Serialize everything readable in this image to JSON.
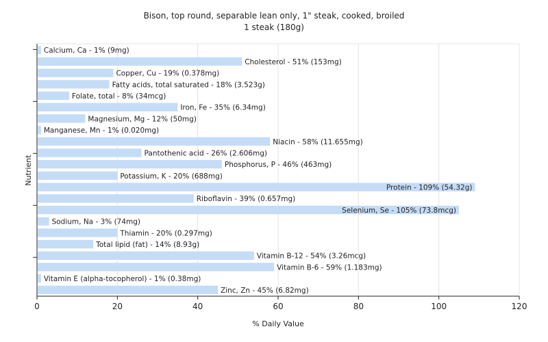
{
  "chart_data": {
    "type": "bar",
    "orientation": "horizontal",
    "title": "Bison, top round, separable lean only, 1\" steak, cooked, broiled",
    "subtitle": "1 steak (180g)",
    "xlabel": "% Daily Value",
    "ylabel": "Nutrient",
    "xlim": [
      0,
      120
    ],
    "xticks": [
      0,
      20,
      40,
      60,
      80,
      100,
      120
    ],
    "grid": true,
    "bar_color": "#c5dcf6",
    "categories": [
      "Calcium, Ca",
      "Cholesterol",
      "Copper, Cu",
      "Fatty acids, total saturated",
      "Folate, total",
      "Iron, Fe",
      "Magnesium, Mg",
      "Manganese, Mn",
      "Niacin",
      "Pantothenic acid",
      "Phosphorus, P",
      "Potassium, K",
      "Protein",
      "Riboflavin",
      "Selenium, Se",
      "Sodium, Na",
      "Thiamin",
      "Total lipid (fat)",
      "Vitamin B-12",
      "Vitamin B-6",
      "Vitamin E (alpha-tocopherol)",
      "Zinc, Zn"
    ],
    "values": [
      1,
      51,
      19,
      18,
      8,
      35,
      12,
      1,
      58,
      26,
      46,
      20,
      109,
      39,
      105,
      3,
      20,
      14,
      54,
      59,
      1,
      45
    ],
    "labels": [
      "Calcium, Ca - 1% (9mg)",
      "Cholesterol - 51% (153mg)",
      "Copper, Cu - 19% (0.378mg)",
      "Fatty acids, total saturated - 18% (3.523g)",
      "Folate, total - 8% (34mcg)",
      "Iron, Fe - 35% (6.34mg)",
      "Magnesium, Mg - 12% (50mg)",
      "Manganese, Mn - 1% (0.020mg)",
      "Niacin - 58% (11.655mg)",
      "Pantothenic acid - 26% (2.606mg)",
      "Phosphorus, P - 46% (463mg)",
      "Potassium, K - 20% (688mg)",
      "Protein - 109% (54.32g)",
      "Riboflavin - 39% (0.657mg)",
      "Selenium, Se - 105% (73.8mcg)",
      "Sodium, Na - 3% (74mg)",
      "Thiamin - 20% (0.297mg)",
      "Total lipid (fat) - 14% (8.93g)",
      "Vitamin B-12 - 54% (3.26mcg)",
      "Vitamin B-6 - 59% (1.183mg)",
      "Vitamin E (alpha-tocopherol) - 1% (0.38mg)",
      "Zinc, Zn - 45% (6.82mg)"
    ]
  }
}
